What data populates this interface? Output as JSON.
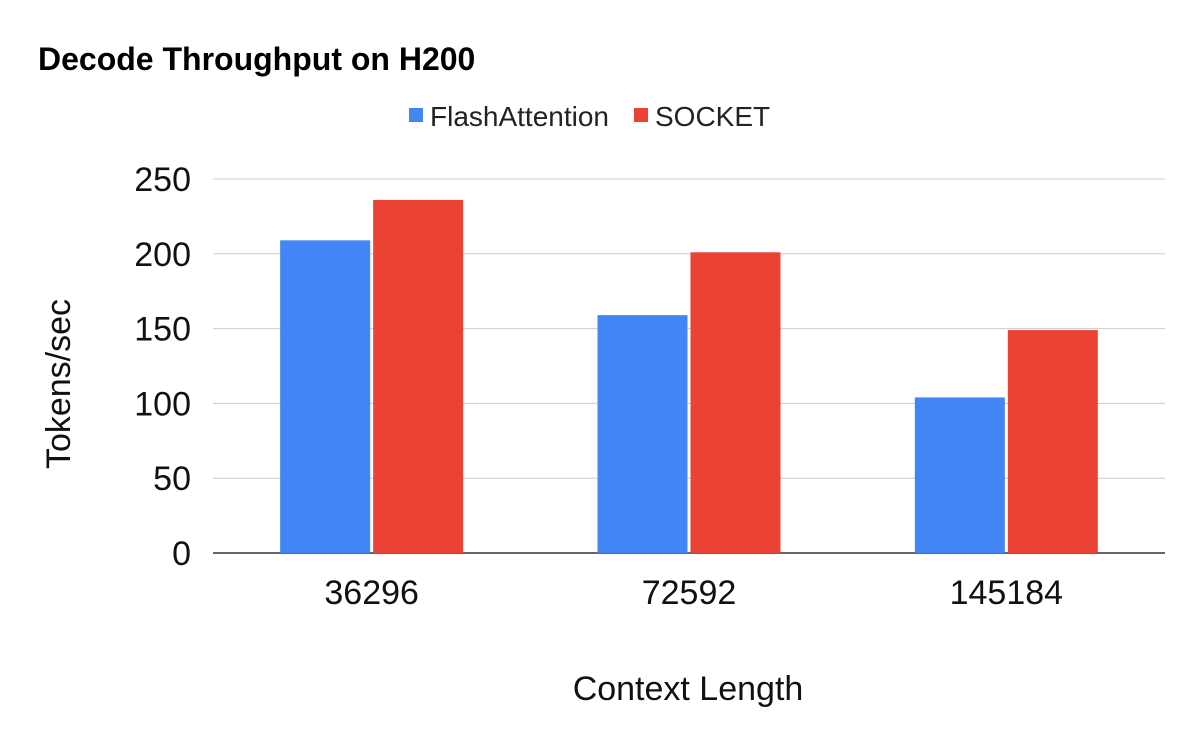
{
  "chart_data": {
    "type": "bar",
    "title": "Decode Throughput on H200",
    "categories": [
      "36296",
      "72592",
      "145184"
    ],
    "series": [
      {
        "name": "FlashAttention",
        "color": "#4285f4",
        "values": [
          209,
          159,
          104
        ]
      },
      {
        "name": "SOCKET",
        "color": "#ea4335",
        "values": [
          236,
          201,
          149
        ]
      }
    ],
    "xlabel": "Context Length",
    "ylabel": "Tokens/sec",
    "ylim": [
      0,
      250
    ],
    "yticks": [
      0,
      50,
      100,
      150,
      200,
      250
    ],
    "grid": true,
    "legend_position": "top-center"
  }
}
